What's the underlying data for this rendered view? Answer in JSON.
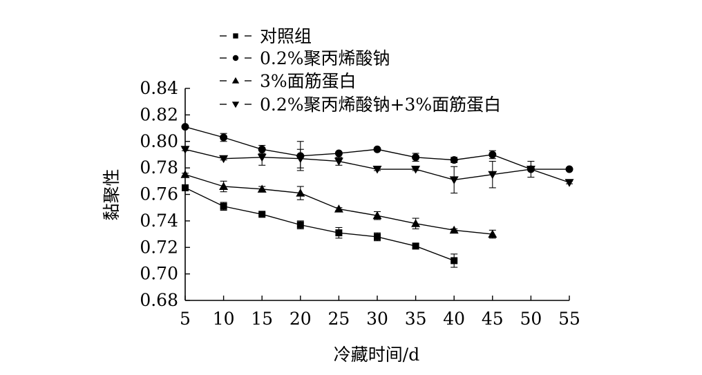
{
  "chart_data": {
    "type": "line",
    "xlabel": "冷藏时间/d",
    "ylabel": "黏聚性",
    "xlim": [
      5,
      55
    ],
    "ylim": [
      0.68,
      0.84
    ],
    "xticks": [
      5,
      10,
      15,
      20,
      25,
      30,
      35,
      40,
      45,
      50,
      55
    ],
    "yticks": [
      0.68,
      0.7,
      0.72,
      0.74,
      0.76,
      0.78,
      0.8,
      0.82,
      0.84
    ],
    "grid": false,
    "legend_position": "top",
    "series": [
      {
        "name": "对照组",
        "marker": "square",
        "x": [
          5,
          10,
          15,
          20,
          25,
          30,
          35,
          40
        ],
        "y": [
          0.765,
          0.751,
          0.745,
          0.737,
          0.731,
          0.728,
          0.721,
          0.71
        ],
        "err": [
          0.002,
          0.003,
          0.001,
          0.003,
          0.004,
          0.003,
          0.002,
          0.005
        ]
      },
      {
        "name": "0.2%聚丙烯酸钠",
        "marker": "circle",
        "x": [
          5,
          10,
          15,
          20,
          25,
          30,
          35,
          40,
          45,
          50,
          55
        ],
        "y": [
          0.811,
          0.803,
          0.794,
          0.789,
          0.791,
          0.794,
          0.788,
          0.786,
          0.79,
          0.779,
          0.779
        ],
        "err": [
          0.001,
          0.003,
          0.003,
          0.011,
          0.001,
          0.001,
          0.003,
          0.002,
          0.003,
          0.001,
          0.001
        ]
      },
      {
        "name": "3%面筋蛋白",
        "marker": "triangle-up",
        "x": [
          5,
          10,
          15,
          20,
          25,
          30,
          35,
          40,
          45
        ],
        "y": [
          0.775,
          0.766,
          0.764,
          0.761,
          0.749,
          0.744,
          0.738,
          0.733,
          0.73
        ],
        "err": [
          0.001,
          0.004,
          0.002,
          0.005,
          0.001,
          0.003,
          0.004,
          0.001,
          0.003
        ]
      },
      {
        "name": "0.2%聚丙烯酸钠+3%面筋蛋白",
        "marker": "triangle-down",
        "x": [
          5,
          10,
          15,
          20,
          25,
          30,
          35,
          40,
          45,
          50,
          55
        ],
        "y": [
          0.794,
          0.787,
          0.788,
          0.787,
          0.785,
          0.779,
          0.779,
          0.771,
          0.775,
          0.779,
          0.769
        ],
        "err": [
          0.001,
          0.001,
          0.006,
          0.007,
          0.003,
          0.001,
          0.001,
          0.01,
          0.01,
          0.006,
          0.001
        ]
      }
    ]
  }
}
